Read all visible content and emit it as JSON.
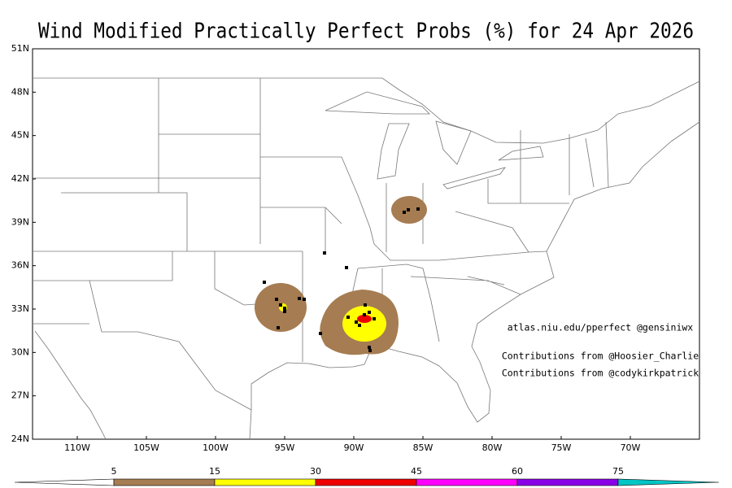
{
  "title": "Wind Modified Practically Perfect Probs (%) for 24 Apr 2026",
  "lat_labels": [
    "51N",
    "48N",
    "45N",
    "42N",
    "39N",
    "36N",
    "33N",
    "30N",
    "27N",
    "24N"
  ],
  "lon_labels": [
    "110W",
    "105W",
    "100W",
    "95W",
    "90W",
    "85W",
    "80W",
    "75W",
    "70W"
  ],
  "credits": [
    "atlas.niu.edu/pperfect @gensiniwx",
    "Contributions from @Hoosier_Charlie",
    "Contributions from @codykirkpatrick"
  ],
  "colorbar": {
    "levels": [
      5,
      15,
      30,
      45,
      60,
      75
    ],
    "colors": [
      "#ffffff",
      "#a67c52",
      "#ffff00",
      "#ee0000",
      "#ff00ff",
      "#8a00e6",
      "#00c6c6"
    ]
  }
}
